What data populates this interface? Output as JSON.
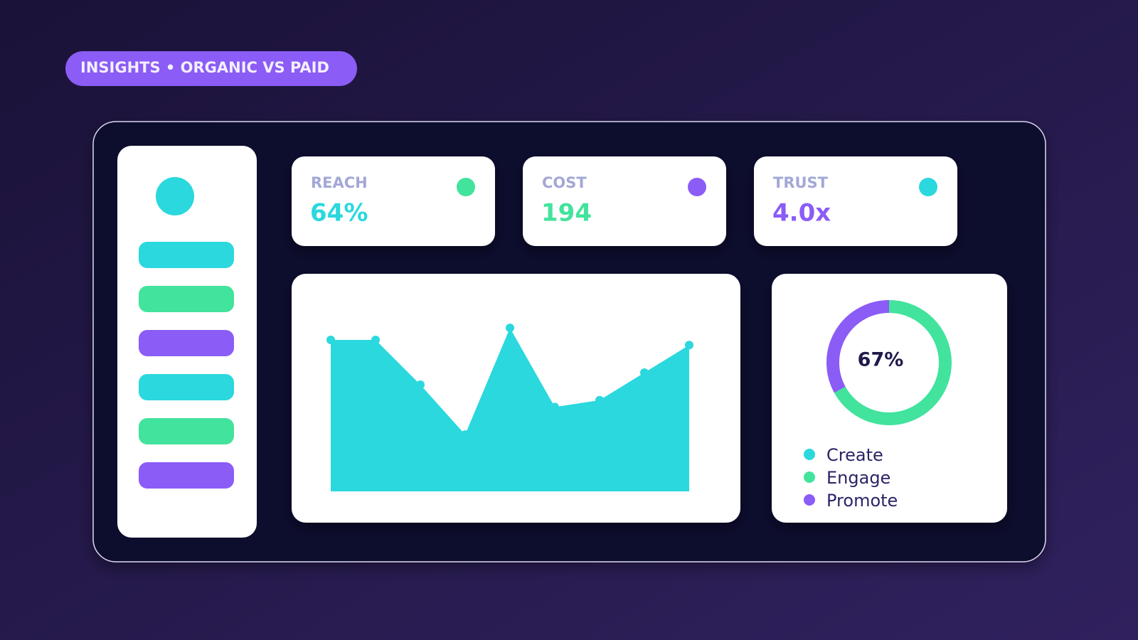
{
  "badge": "INSIGHTS • ORGANIC VS PAID",
  "kpis": [
    {
      "label": "REACH",
      "value": "64%"
    },
    {
      "label": "COST",
      "value": "194"
    },
    {
      "label": "TRUST",
      "value": "4.0x"
    }
  ],
  "chart_data": [
    {
      "type": "area",
      "categories": [
        null,
        null,
        null,
        null,
        null,
        null,
        null,
        null,
        null
      ],
      "values": [
        88,
        88,
        62,
        33,
        95,
        49,
        53,
        69,
        85
      ],
      "color": "#2ad8de",
      "ylim": [
        0,
        100
      ]
    },
    {
      "type": "donut",
      "center_label": "67%",
      "categories": [
        "Create",
        "Engage",
        "Promote"
      ],
      "values": [
        0,
        67,
        33
      ],
      "colors": [
        "#2ad8de",
        "#42e39c",
        "#8b5cf6"
      ]
    }
  ]
}
